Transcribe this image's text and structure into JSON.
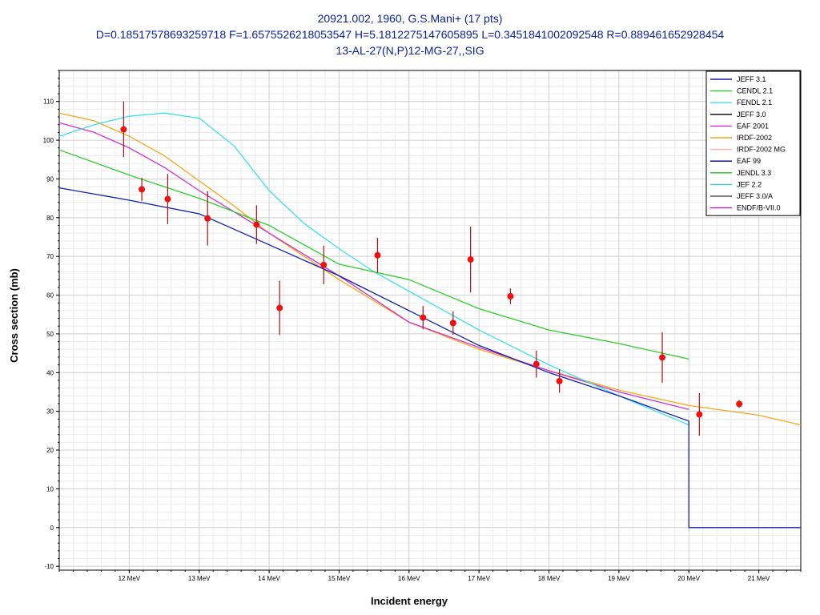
{
  "chart_data": {
    "type": "line",
    "title_lines": [
      "20921.002, 1960, G.S.Mani+ (17 pts)",
      "D=0.18517578693259718 F=1.6575526218053547 H=5.1812275147605895 L=0.3451841002092548 R=0.889461652928454",
      "13-AL-27(N,P)12-MG-27,,SIG"
    ],
    "xlabel": "Incident energy",
    "ylabel": "Cross section (mb)",
    "xlim": [
      11.0,
      21.6
    ],
    "ylim": [
      -11,
      118
    ],
    "x_ticks": [
      {
        "v": 12,
        "label": "12 MeV"
      },
      {
        "v": 13,
        "label": "13 MeV"
      },
      {
        "v": 14,
        "label": "14 MeV"
      },
      {
        "v": 15,
        "label": "15 MeV"
      },
      {
        "v": 16,
        "label": "16 MeV"
      },
      {
        "v": 17,
        "label": "17 MeV"
      },
      {
        "v": 18,
        "label": "18 MeV"
      },
      {
        "v": 19,
        "label": "19 MeV"
      },
      {
        "v": 20,
        "label": "20 MeV"
      },
      {
        "v": 21,
        "label": "21 MeV"
      }
    ],
    "y_ticks": [
      -10,
      0,
      10,
      20,
      30,
      40,
      50,
      60,
      70,
      80,
      90,
      100,
      110
    ],
    "grid": true,
    "legend_position": "top-right",
    "series": [
      {
        "name": "JEFF 3.1",
        "color": "#0d1fb0",
        "points": [
          [
            11.0,
            87.7
          ],
          [
            12.0,
            84.5
          ],
          [
            13.0,
            81.0
          ],
          [
            14.0,
            73.0
          ],
          [
            15.0,
            65.0
          ],
          [
            16.0,
            56.0
          ],
          [
            17.0,
            47.0
          ],
          [
            18.0,
            40.0
          ],
          [
            19.0,
            34.0
          ],
          [
            20.0,
            27.5
          ],
          [
            20.0,
            0.0
          ],
          [
            21.6,
            0.0
          ]
        ]
      },
      {
        "name": "CENDL 2.1",
        "color": "#2ecc2e",
        "points": [
          [
            11.0,
            97.5
          ],
          [
            12.0,
            91.0
          ],
          [
            13.0,
            85.0
          ],
          [
            14.0,
            78.0
          ],
          [
            15.0,
            68.0
          ],
          [
            16.0,
            64.0
          ],
          [
            17.0,
            56.5
          ],
          [
            18.0,
            51.0
          ],
          [
            19.0,
            47.5
          ],
          [
            20.0,
            43.5
          ]
        ]
      },
      {
        "name": "FENDL 2.1",
        "color": "#3ee0e6",
        "points": [
          [
            11.0,
            101.0
          ],
          [
            11.5,
            104.0
          ],
          [
            12.0,
            106.2
          ],
          [
            12.5,
            107.0
          ],
          [
            13.0,
            105.7
          ],
          [
            13.5,
            98.5
          ],
          [
            14.0,
            87.0
          ],
          [
            14.5,
            78.5
          ],
          [
            15.0,
            72.0
          ],
          [
            15.5,
            66.0
          ],
          [
            16.0,
            61.0
          ],
          [
            17.0,
            51.0
          ],
          [
            18.0,
            42.0
          ],
          [
            19.0,
            34.0
          ],
          [
            20.0,
            26.5
          ]
        ]
      },
      {
        "name": "JEFF 3.0",
        "color": "#000000",
        "points": []
      },
      {
        "name": "EAF 2001",
        "color": "#cc33cc",
        "points": [
          [
            11.0,
            104.5
          ],
          [
            11.5,
            102.0
          ],
          [
            12.0,
            98.0
          ],
          [
            12.5,
            93.0
          ],
          [
            13.0,
            87.0
          ],
          [
            13.5,
            81.5
          ],
          [
            14.0,
            76.0
          ],
          [
            15.0,
            65.0
          ],
          [
            16.0,
            53.0
          ],
          [
            17.0,
            46.5
          ],
          [
            18.0,
            40.5
          ],
          [
            19.0,
            35.0
          ],
          [
            20.0,
            30.5
          ]
        ]
      },
      {
        "name": "IRDF-2002",
        "color": "#f2a81d",
        "points": [
          [
            11.0,
            107.0
          ],
          [
            11.5,
            105.0
          ],
          [
            12.0,
            101.0
          ],
          [
            12.5,
            96.0
          ],
          [
            13.0,
            89.5
          ],
          [
            13.5,
            83.0
          ],
          [
            14.0,
            76.0
          ],
          [
            15.0,
            64.0
          ],
          [
            16.0,
            53.0
          ],
          [
            17.0,
            46.0
          ],
          [
            18.0,
            40.5
          ],
          [
            19.0,
            35.5
          ],
          [
            20.0,
            31.5
          ],
          [
            21.0,
            29.0
          ],
          [
            21.6,
            26.5
          ]
        ]
      },
      {
        "name": "IRDF-2002 MG",
        "color": "#f5b0a8",
        "points": []
      },
      {
        "name": "EAF 99",
        "color": "#000080",
        "points": []
      },
      {
        "name": "JENDL 3.3",
        "color": "#22bb22",
        "points": []
      },
      {
        "name": "JEF 2.2",
        "color": "#33cccc",
        "points": []
      },
      {
        "name": "JEFF 3.0/A",
        "color": "#555555",
        "points": []
      },
      {
        "name": "ENDF/B-VII.0",
        "color": "#bb22bb",
        "points": []
      }
    ],
    "experimental": {
      "name": "20921.002, 1960, G.S.Mani+ (17 pts)",
      "color": "#ee1111",
      "points": [
        {
          "x": 11.92,
          "y": 102.8,
          "err": 7.2
        },
        {
          "x": 12.18,
          "y": 87.3,
          "err": 3.0
        },
        {
          "x": 12.55,
          "y": 84.8,
          "err": 6.5
        },
        {
          "x": 13.12,
          "y": 79.8,
          "err": 7.0
        },
        {
          "x": 13.82,
          "y": 78.2,
          "err": 5.0
        },
        {
          "x": 14.15,
          "y": 56.7,
          "err": 7.0
        },
        {
          "x": 14.78,
          "y": 67.8,
          "err": 5.0
        },
        {
          "x": 15.55,
          "y": 70.3,
          "err": 4.5
        },
        {
          "x": 16.2,
          "y": 54.2,
          "err": 3.0
        },
        {
          "x": 16.63,
          "y": 52.8,
          "err": 3.0
        },
        {
          "x": 16.88,
          "y": 69.2,
          "err": 8.5
        },
        {
          "x": 17.45,
          "y": 59.7,
          "err": 2.0
        },
        {
          "x": 17.82,
          "y": 42.2,
          "err": 3.5
        },
        {
          "x": 18.15,
          "y": 37.8,
          "err": 3.0
        },
        {
          "x": 19.62,
          "y": 43.9,
          "err": 6.5
        },
        {
          "x": 20.15,
          "y": 29.2,
          "err": 5.5
        },
        {
          "x": 20.72,
          "y": 31.9,
          "err": 1.0
        }
      ]
    }
  }
}
